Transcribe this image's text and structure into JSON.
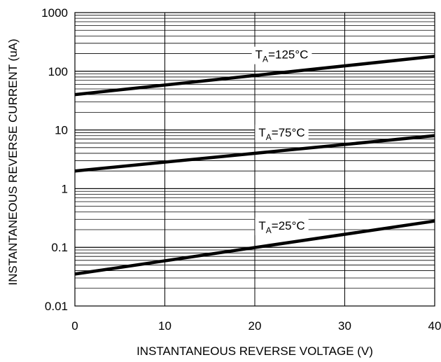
{
  "chart_data": {
    "type": "line",
    "xlabel": "INSTANTANEOUS REVERSE VOLTAGE (V)",
    "ylabel": "INSTANTANEOUS REVERSE CURRENT (uA)",
    "xlim": [
      0,
      40
    ],
    "ylim": [
      0.01,
      1000
    ],
    "yscale": "log",
    "grid": true,
    "x_ticks": [
      0,
      10,
      20,
      30,
      40
    ],
    "x_tick_labels": [
      "0",
      "10",
      "20",
      "30",
      "40"
    ],
    "y_ticks": [
      0.01,
      0.1,
      1,
      10,
      100,
      1000
    ],
    "y_tick_labels": [
      "0.01",
      "0.1",
      "1",
      "10",
      "100",
      "1000"
    ],
    "series": [
      {
        "label_main": "T",
        "label_sub": "A",
        "label_rest": "=125°C",
        "x": [
          0,
          40
        ],
        "y": [
          40,
          180
        ]
      },
      {
        "label_main": "T",
        "label_sub": "A",
        "label_rest": "=75°C",
        "x": [
          0,
          40
        ],
        "y": [
          2,
          8
        ]
      },
      {
        "label_main": "T",
        "label_sub": "A",
        "label_rest": "=25°C",
        "x": [
          0,
          40
        ],
        "y": [
          0.035,
          0.28
        ]
      }
    ],
    "label_positions_x": [
      23,
      23,
      23
    ]
  }
}
